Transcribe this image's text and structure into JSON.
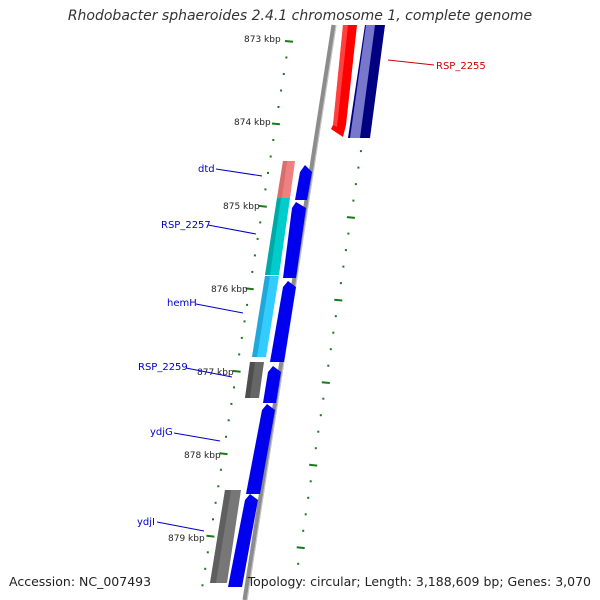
{
  "title": "Rhodobacter sphaeroides 2.4.1 chromosome 1, complete genome",
  "accession_label": "Accession: NC_007493",
  "stats_label": "Topology: circular; Length: 3,188,609 bp; Genes: 3,070",
  "ticks": [
    {
      "label": "873 kbp"
    },
    {
      "label": "874 kbp"
    },
    {
      "label": "875 kbp"
    },
    {
      "label": "876 kbp"
    },
    {
      "label": "877 kbp"
    },
    {
      "label": "878 kbp"
    },
    {
      "label": "879 kbp"
    }
  ],
  "genes": [
    {
      "label": "RSP_2255",
      "strand": "reverse",
      "label_color": "#cc0000"
    },
    {
      "label": "dtd",
      "strand": "forward",
      "label_color": "#0000cc"
    },
    {
      "label": "RSP_2257",
      "strand": "forward",
      "label_color": "#0000cc"
    },
    {
      "label": "hemH",
      "strand": "forward",
      "label_color": "#0000cc"
    },
    {
      "label": "RSP_2259",
      "strand": "forward",
      "label_color": "#0000cc"
    },
    {
      "label": "ydjG",
      "strand": "forward",
      "label_color": "#0000cc"
    },
    {
      "label": "ydjI",
      "strand": "forward",
      "label_color": "#0000cc"
    }
  ],
  "colors": {
    "backbone": "#8c8c8c",
    "forward_cds": "#0000ee",
    "reverse_cds": "#ff0000",
    "tick": "#1a7a1a"
  }
}
